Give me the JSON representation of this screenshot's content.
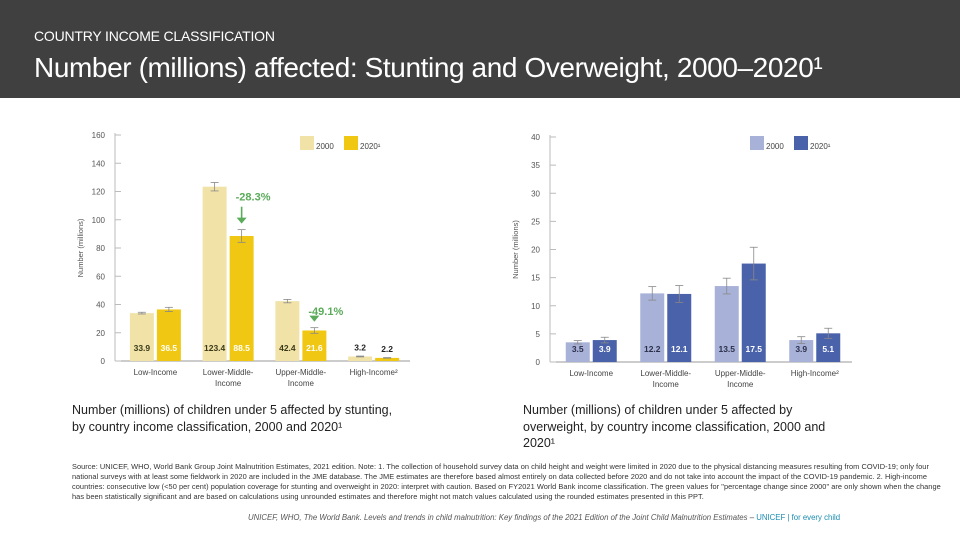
{
  "header": {
    "subtitle": "COUNTRY INCOME CLASSIFICATION",
    "title": "Number (millions) affected: Stunting and Overweight, 2000–2020¹"
  },
  "colors": {
    "header_bg": "#404040",
    "stunting_2000": "#f1e3a8",
    "stunting_2020": "#f0c814",
    "overweight_2000": "#a8b2d8",
    "overweight_2020": "#4a62aa",
    "annotation_green": "#5aab5a",
    "brand_blue": "#1a8cb0"
  },
  "chart_data": [
    {
      "type": "bar",
      "id": "stunting",
      "ylabel": "Number (millions)",
      "xlabel": "",
      "ylim": [
        0,
        160
      ],
      "yticks": [
        0,
        20,
        40,
        60,
        80,
        100,
        120,
        140,
        160
      ],
      "categories": [
        "Low-Income",
        "Lower-Middle-Income",
        "Upper-Middle-Income",
        "High-Income²"
      ],
      "category_lines": [
        [
          "Low-Income"
        ],
        [
          "Lower-Middle-",
          "Income"
        ],
        [
          "Upper-Middle-",
          "Income"
        ],
        [
          "High-Income²"
        ]
      ],
      "series": [
        {
          "name": "2000",
          "values": [
            33.9,
            123.4,
            42.4,
            3.2
          ],
          "err": [
            0.6,
            3.0,
            1.2,
            0.3
          ]
        },
        {
          "name": "2020¹",
          "values": [
            36.5,
            88.5,
            21.6,
            2.2
          ],
          "err": [
            1.5,
            4.5,
            2.0,
            0.2
          ]
        }
      ],
      "legend": [
        "2000",
        "2020¹"
      ],
      "legend_position": "top-right",
      "annotations": [
        {
          "category_index": 1,
          "text": "-28.3%"
        },
        {
          "category_index": 2,
          "text": "-49.1%"
        }
      ]
    },
    {
      "type": "bar",
      "id": "overweight",
      "ylabel": "Number (millions)",
      "xlabel": "",
      "ylim": [
        0,
        40
      ],
      "yticks": [
        0,
        5,
        10,
        15,
        20,
        25,
        30,
        35,
        40
      ],
      "categories": [
        "Low-Income",
        "Lower-Middle-Income",
        "Upper-Middle-Income",
        "High-Income²"
      ],
      "category_lines": [
        [
          "Low-Income"
        ],
        [
          "Lower-Middle-",
          "Income"
        ],
        [
          "Upper-Middle-",
          "Income"
        ],
        [
          "High-Income²"
        ]
      ],
      "series": [
        {
          "name": "2000",
          "values": [
            3.5,
            12.2,
            13.5,
            3.9
          ],
          "err": [
            0.3,
            1.2,
            1.4,
            0.6
          ]
        },
        {
          "name": "2020¹",
          "values": [
            3.9,
            12.1,
            17.5,
            5.1
          ],
          "err": [
            0.5,
            1.5,
            2.9,
            0.9
          ]
        }
      ],
      "legend": [
        "2000",
        "2020¹"
      ],
      "legend_position": "top-right",
      "annotations": []
    }
  ],
  "captions": {
    "left": "Number (millions) of children under 5 affected by stunting, by country income classification, 2000 and 2020¹",
    "right": "Number (millions) of children under 5 affected by overweight, by country income classification, 2000 and 2020¹"
  },
  "source": "Source: UNICEF, WHO, World Bank Group Joint Malnutrition Estimates, 2021 edition. Note: 1. The collection of household survey data on child height and weight were limited in 2020 due to the physical distancing measures resulting from COVID-19; only four national surveys with at least some fieldwork in 2020 are included in the JME database. The JME estimates are therefore based almost entirely on data collected before 2020 and do not take into account the impact of the COVID-19 pandemic. 2. High-income countries: consecutive low (<50 per cent) population coverage for stunting and overweight in 2020: interpret with caution. Based on FY2021 World Bank income classification. The green values for \"percentage change since 2000\" are only shown when the change has been statistically significant and are based on calculations using unrounded estimates and therefore might not match values calculated using the rounded estimates presented in this PPT.",
  "citation": {
    "text": "UNICEF, WHO, The World Bank. Levels and trends in child malnutrition: Key findings of the 2021 Edition of the Joint Child Malnutrition Estimates – ",
    "brand": "UNICEF | for every child"
  }
}
